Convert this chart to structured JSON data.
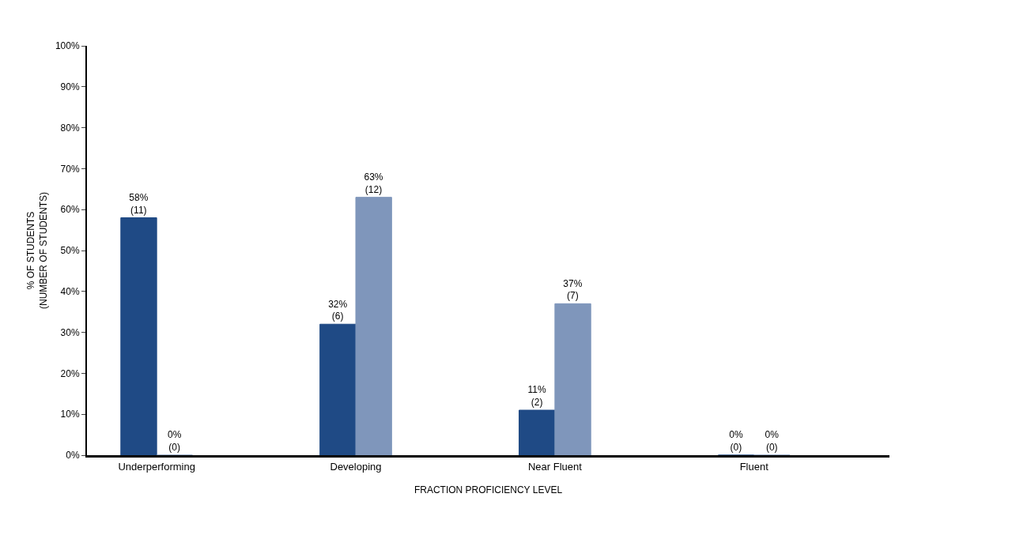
{
  "chart_data": {
    "type": "bar",
    "xlabel": "FRACTION PROFICIENCY LEVEL",
    "ylabel": "% OF STUDENTS\n(NUMBER OF STUDENTS)",
    "categories": [
      "Underperforming",
      "Developing",
      "Near Fluent",
      "Fluent"
    ],
    "series": [
      {
        "color": "#1f4a85",
        "values": [
          58,
          32,
          11,
          0
        ],
        "value_labels": [
          "58%\n(11)",
          "32%\n(6)",
          "11%\n(2)",
          "0%\n(0)"
        ]
      },
      {
        "color": "#7f96bb",
        "values": [
          0,
          63,
          37,
          0
        ],
        "value_labels": [
          "0%\n(0)",
          "63%\n(12)",
          "37%\n(7)",
          "0%\n(0)"
        ]
      }
    ],
    "ylim": [
      0,
      100
    ],
    "yticks": [
      {
        "value": 0,
        "label": "0%"
      },
      {
        "value": 10,
        "label": "10%"
      },
      {
        "value": 20,
        "label": "20%"
      },
      {
        "value": 30,
        "label": "30%"
      },
      {
        "value": 40,
        "label": "40%"
      },
      {
        "value": 50,
        "label": "50%"
      },
      {
        "value": 60,
        "label": "60%"
      },
      {
        "value": 70,
        "label": "70%"
      },
      {
        "value": 80,
        "label": "80%"
      },
      {
        "value": 90,
        "label": "90%"
      },
      {
        "value": 100,
        "label": "100%"
      }
    ]
  }
}
